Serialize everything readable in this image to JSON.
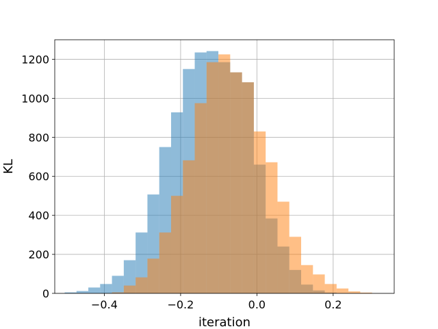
{
  "chart_data": {
    "type": "histogram",
    "title": "",
    "xlabel": "iteration",
    "ylabel": "KL",
    "xlim": [
      -0.53,
      0.36
    ],
    "ylim": [
      0,
      1300
    ],
    "xticks": [
      -0.4,
      -0.2,
      0.0,
      0.2
    ],
    "xtick_labels": [
      "−0.4",
      "−0.2",
      "0.0",
      "0.2"
    ],
    "yticks": [
      0,
      200,
      400,
      600,
      800,
      1000,
      1200
    ],
    "ytick_labels": [
      "0",
      "200",
      "400",
      "600",
      "800",
      "1000",
      "1200"
    ],
    "grid": true,
    "legend": false,
    "series": [
      {
        "color": "#1f77b4",
        "alpha": 0.5,
        "bins": [
          [
            -0.504,
            -0.473,
            5
          ],
          [
            -0.473,
            -0.442,
            12
          ],
          [
            -0.442,
            -0.411,
            30
          ],
          [
            -0.411,
            -0.38,
            48
          ],
          [
            -0.38,
            -0.349,
            90
          ],
          [
            -0.349,
            -0.318,
            170
          ],
          [
            -0.318,
            -0.287,
            312
          ],
          [
            -0.287,
            -0.256,
            507
          ],
          [
            -0.256,
            -0.225,
            750
          ],
          [
            -0.225,
            -0.194,
            928
          ],
          [
            -0.194,
            -0.163,
            1150
          ],
          [
            -0.163,
            -0.132,
            1235
          ],
          [
            -0.132,
            -0.101,
            1242
          ],
          [
            -0.101,
            -0.07,
            1185
          ],
          [
            -0.07,
            -0.039,
            1133
          ],
          [
            -0.039,
            -0.008,
            1082
          ],
          [
            -0.008,
            0.023,
            660
          ],
          [
            0.023,
            0.054,
            384
          ],
          [
            0.054,
            0.085,
            240
          ],
          [
            0.085,
            0.116,
            120
          ],
          [
            0.116,
            0.147,
            45
          ],
          [
            0.147,
            0.178,
            15
          ],
          [
            0.178,
            0.209,
            4
          ]
        ]
      },
      {
        "color": "#ff7f0e",
        "alpha": 0.5,
        "bins": [
          [
            -0.38,
            -0.349,
            5
          ],
          [
            -0.349,
            -0.318,
            40
          ],
          [
            -0.318,
            -0.287,
            82
          ],
          [
            -0.287,
            -0.256,
            178
          ],
          [
            -0.256,
            -0.225,
            312
          ],
          [
            -0.225,
            -0.194,
            500
          ],
          [
            -0.194,
            -0.163,
            682
          ],
          [
            -0.163,
            -0.132,
            975
          ],
          [
            -0.132,
            -0.101,
            1185
          ],
          [
            -0.101,
            -0.07,
            1225
          ],
          [
            -0.07,
            -0.039,
            1133
          ],
          [
            -0.039,
            -0.008,
            1082
          ],
          [
            -0.008,
            0.023,
            830
          ],
          [
            0.023,
            0.054,
            672
          ],
          [
            0.054,
            0.085,
            470
          ],
          [
            0.085,
            0.116,
            290
          ],
          [
            0.116,
            0.147,
            145
          ],
          [
            0.147,
            0.178,
            97
          ],
          [
            0.178,
            0.209,
            48
          ],
          [
            0.209,
            0.24,
            25
          ],
          [
            0.24,
            0.271,
            10
          ],
          [
            0.271,
            0.302,
            4
          ]
        ]
      }
    ]
  }
}
